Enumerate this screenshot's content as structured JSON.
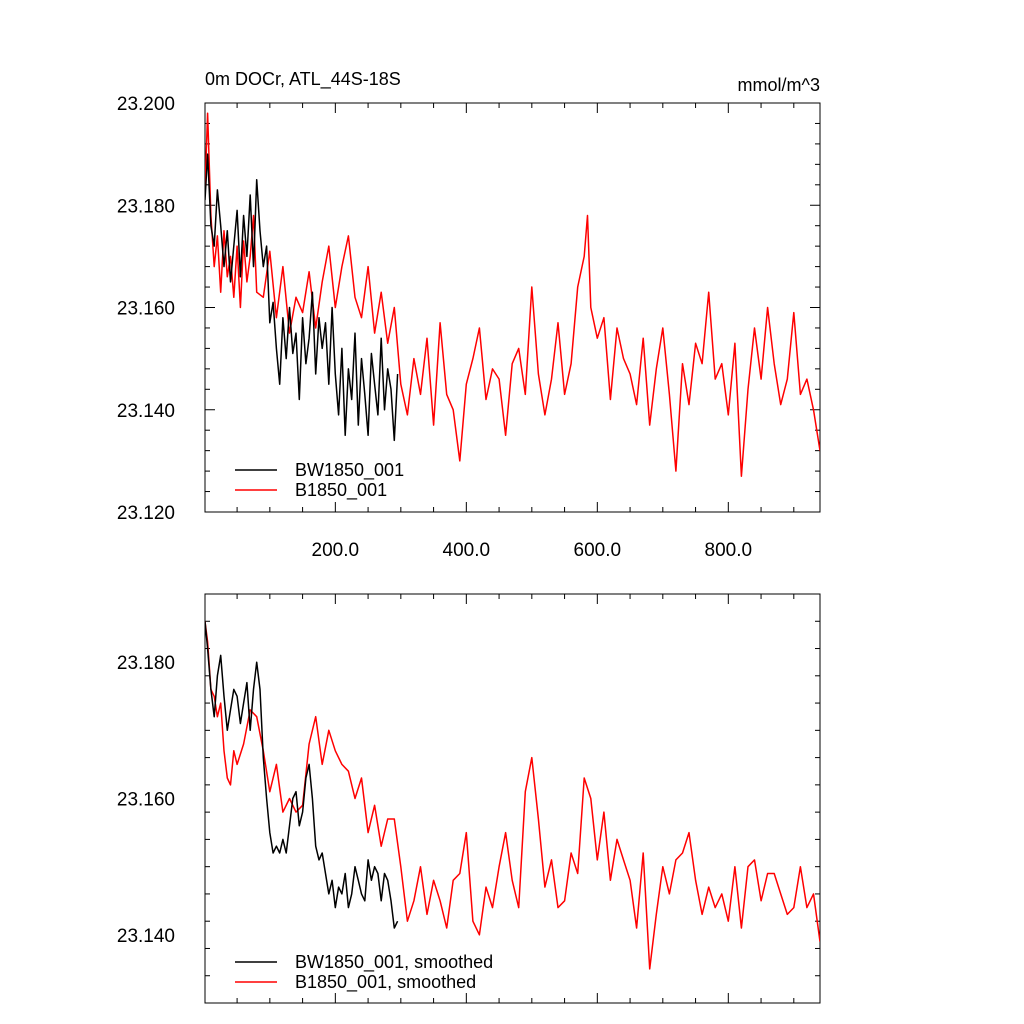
{
  "chart_data": [
    {
      "type": "line",
      "title": "0m DOCr, ATL_44S-18S",
      "units": "mmol/m^3",
      "xlim": [
        1,
        940
      ],
      "ylim": [
        23.12,
        23.2
      ],
      "x_ticks": [
        200,
        400,
        600,
        800
      ],
      "x_tick_labels": [
        "200.0",
        "400.0",
        "600.0",
        "800.0"
      ],
      "y_ticks": [
        23.12,
        23.14,
        23.16,
        23.18,
        23.2
      ],
      "y_tick_labels": [
        "23.120",
        "23.140",
        "23.160",
        "23.180",
        "23.200"
      ],
      "legend_position": "bottom-left",
      "series": [
        {
          "name": "BW1850_001",
          "color": "#000000",
          "x": [
            1,
            5,
            10,
            15,
            20,
            25,
            30,
            35,
            40,
            45,
            50,
            55,
            60,
            65,
            70,
            75,
            80,
            85,
            90,
            95,
            100,
            105,
            110,
            115,
            120,
            125,
            130,
            135,
            140,
            145,
            150,
            155,
            160,
            165,
            170,
            175,
            180,
            185,
            190,
            195,
            200,
            205,
            210,
            215,
            220,
            225,
            230,
            235,
            240,
            245,
            250,
            255,
            260,
            265,
            270,
            275,
            280,
            285,
            290,
            295
          ],
          "y": [
            23.181,
            23.19,
            23.176,
            23.172,
            23.183,
            23.176,
            23.168,
            23.175,
            23.165,
            23.172,
            23.179,
            23.166,
            23.178,
            23.17,
            23.182,
            23.168,
            23.185,
            23.175,
            23.168,
            23.172,
            23.157,
            23.161,
            23.152,
            23.145,
            23.158,
            23.15,
            23.16,
            23.151,
            23.155,
            23.142,
            23.158,
            23.149,
            23.154,
            23.163,
            23.147,
            23.158,
            23.152,
            23.157,
            23.145,
            23.16,
            23.147,
            23.139,
            23.152,
            23.135,
            23.148,
            23.142,
            23.155,
            23.137,
            23.15,
            23.143,
            23.135,
            23.151,
            23.145,
            23.139,
            23.154,
            23.14,
            23.148,
            23.144,
            23.134,
            23.147
          ]
        },
        {
          "name": "B1850_001",
          "color": "#ff0000",
          "x": [
            1,
            5,
            10,
            15,
            20,
            25,
            30,
            35,
            40,
            45,
            50,
            55,
            60,
            65,
            70,
            75,
            80,
            90,
            100,
            110,
            120,
            130,
            140,
            150,
            160,
            170,
            180,
            190,
            200,
            210,
            220,
            230,
            240,
            250,
            260,
            270,
            280,
            290,
            300,
            310,
            320,
            330,
            340,
            350,
            360,
            370,
            380,
            390,
            400,
            410,
            420,
            430,
            440,
            450,
            460,
            470,
            480,
            490,
            500,
            510,
            520,
            530,
            540,
            550,
            560,
            570,
            580,
            585,
            590,
            600,
            610,
            620,
            630,
            640,
            650,
            660,
            670,
            680,
            690,
            700,
            710,
            720,
            730,
            740,
            750,
            760,
            770,
            780,
            790,
            800,
            810,
            820,
            830,
            840,
            850,
            860,
            870,
            880,
            890,
            900,
            910,
            920,
            930,
            940
          ],
          "y": [
            23.183,
            23.198,
            23.178,
            23.168,
            23.174,
            23.163,
            23.175,
            23.166,
            23.17,
            23.162,
            23.172,
            23.16,
            23.173,
            23.165,
            23.17,
            23.178,
            23.163,
            23.162,
            23.171,
            23.158,
            23.168,
            23.155,
            23.162,
            23.159,
            23.167,
            23.156,
            23.165,
            23.172,
            23.16,
            23.168,
            23.174,
            23.162,
            23.158,
            23.168,
            23.155,
            23.163,
            23.153,
            23.16,
            23.145,
            23.139,
            23.15,
            23.143,
            23.154,
            23.137,
            23.157,
            23.143,
            23.14,
            23.13,
            23.145,
            23.15,
            23.156,
            23.142,
            23.148,
            23.146,
            23.135,
            23.149,
            23.152,
            23.143,
            23.164,
            23.147,
            23.139,
            23.146,
            23.157,
            23.143,
            23.149,
            23.164,
            23.17,
            23.178,
            23.16,
            23.154,
            23.158,
            23.142,
            23.156,
            23.15,
            23.147,
            23.141,
            23.154,
            23.137,
            23.148,
            23.156,
            23.143,
            23.128,
            23.149,
            23.141,
            23.153,
            23.149,
            23.163,
            23.146,
            23.149,
            23.139,
            23.153,
            23.127,
            23.144,
            23.156,
            23.146,
            23.16,
            23.149,
            23.141,
            23.146,
            23.159,
            23.143,
            23.146,
            23.14,
            23.132
          ]
        }
      ]
    },
    {
      "type": "line",
      "xlim": [
        1,
        940
      ],
      "ylim": [
        23.13,
        23.19
      ],
      "y_ticks": [
        23.14,
        23.16,
        23.18
      ],
      "y_tick_labels": [
        "23.140",
        "23.160",
        "23.180"
      ],
      "legend_position": "bottom-left",
      "series": [
        {
          "name": "BW1850_001, smoothed",
          "color": "#000000",
          "x": [
            1,
            5,
            10,
            15,
            20,
            25,
            30,
            35,
            40,
            45,
            50,
            55,
            60,
            65,
            70,
            75,
            80,
            85,
            90,
            95,
            100,
            105,
            110,
            115,
            120,
            125,
            130,
            135,
            140,
            145,
            150,
            155,
            160,
            165,
            170,
            175,
            180,
            185,
            190,
            195,
            200,
            205,
            210,
            215,
            220,
            225,
            230,
            235,
            240,
            245,
            250,
            255,
            260,
            265,
            270,
            275,
            280,
            285,
            290,
            295
          ],
          "y": [
            23.186,
            23.182,
            23.176,
            23.172,
            23.178,
            23.181,
            23.175,
            23.17,
            23.173,
            23.176,
            23.175,
            23.171,
            23.174,
            23.177,
            23.17,
            23.176,
            23.18,
            23.176,
            23.166,
            23.16,
            23.155,
            23.152,
            23.153,
            23.152,
            23.154,
            23.152,
            23.156,
            23.16,
            23.161,
            23.156,
            23.158,
            23.163,
            23.165,
            23.16,
            23.153,
            23.151,
            23.152,
            23.149,
            23.146,
            23.148,
            23.144,
            23.147,
            23.146,
            23.149,
            23.144,
            23.146,
            23.15,
            23.148,
            23.146,
            23.145,
            23.151,
            23.148,
            23.15,
            23.149,
            23.145,
            23.149,
            23.148,
            23.145,
            23.141,
            23.142
          ]
        },
        {
          "name": "B1850_001, smoothed",
          "color": "#ff0000",
          "x": [
            1,
            5,
            10,
            15,
            20,
            25,
            30,
            35,
            40,
            45,
            50,
            60,
            70,
            80,
            90,
            100,
            110,
            120,
            130,
            140,
            150,
            160,
            170,
            180,
            190,
            200,
            210,
            220,
            230,
            240,
            250,
            260,
            270,
            280,
            290,
            300,
            310,
            320,
            330,
            340,
            350,
            360,
            370,
            380,
            390,
            400,
            410,
            420,
            430,
            440,
            450,
            460,
            470,
            480,
            490,
            500,
            510,
            520,
            530,
            540,
            550,
            560,
            570,
            580,
            590,
            600,
            610,
            620,
            630,
            640,
            650,
            660,
            670,
            680,
            690,
            700,
            710,
            720,
            730,
            740,
            750,
            760,
            770,
            780,
            790,
            800,
            810,
            820,
            830,
            840,
            850,
            860,
            870,
            880,
            890,
            900,
            910,
            920,
            930,
            940
          ],
          "y": [
            23.186,
            23.183,
            23.176,
            23.175,
            23.172,
            23.174,
            23.167,
            23.163,
            23.162,
            23.167,
            23.165,
            23.168,
            23.173,
            23.172,
            23.167,
            23.161,
            23.165,
            23.158,
            23.16,
            23.158,
            23.159,
            23.168,
            23.172,
            23.165,
            23.17,
            23.167,
            23.165,
            23.164,
            23.16,
            23.163,
            23.155,
            23.159,
            23.153,
            23.157,
            23.157,
            23.15,
            23.142,
            23.145,
            23.15,
            23.143,
            23.148,
            23.145,
            23.141,
            23.148,
            23.149,
            23.155,
            23.142,
            23.14,
            23.147,
            23.144,
            23.15,
            23.155,
            23.148,
            23.144,
            23.161,
            23.166,
            23.157,
            23.147,
            23.151,
            23.144,
            23.145,
            23.152,
            23.149,
            23.163,
            23.16,
            23.151,
            23.158,
            23.148,
            23.154,
            23.151,
            23.148,
            23.141,
            23.152,
            23.135,
            23.143,
            23.15,
            23.146,
            23.151,
            23.152,
            23.155,
            23.148,
            23.143,
            23.147,
            23.144,
            23.146,
            23.142,
            23.15,
            23.141,
            23.15,
            23.151,
            23.145,
            23.149,
            23.149,
            23.146,
            23.143,
            23.144,
            23.15,
            23.144,
            23.146,
            23.139
          ]
        }
      ]
    }
  ]
}
